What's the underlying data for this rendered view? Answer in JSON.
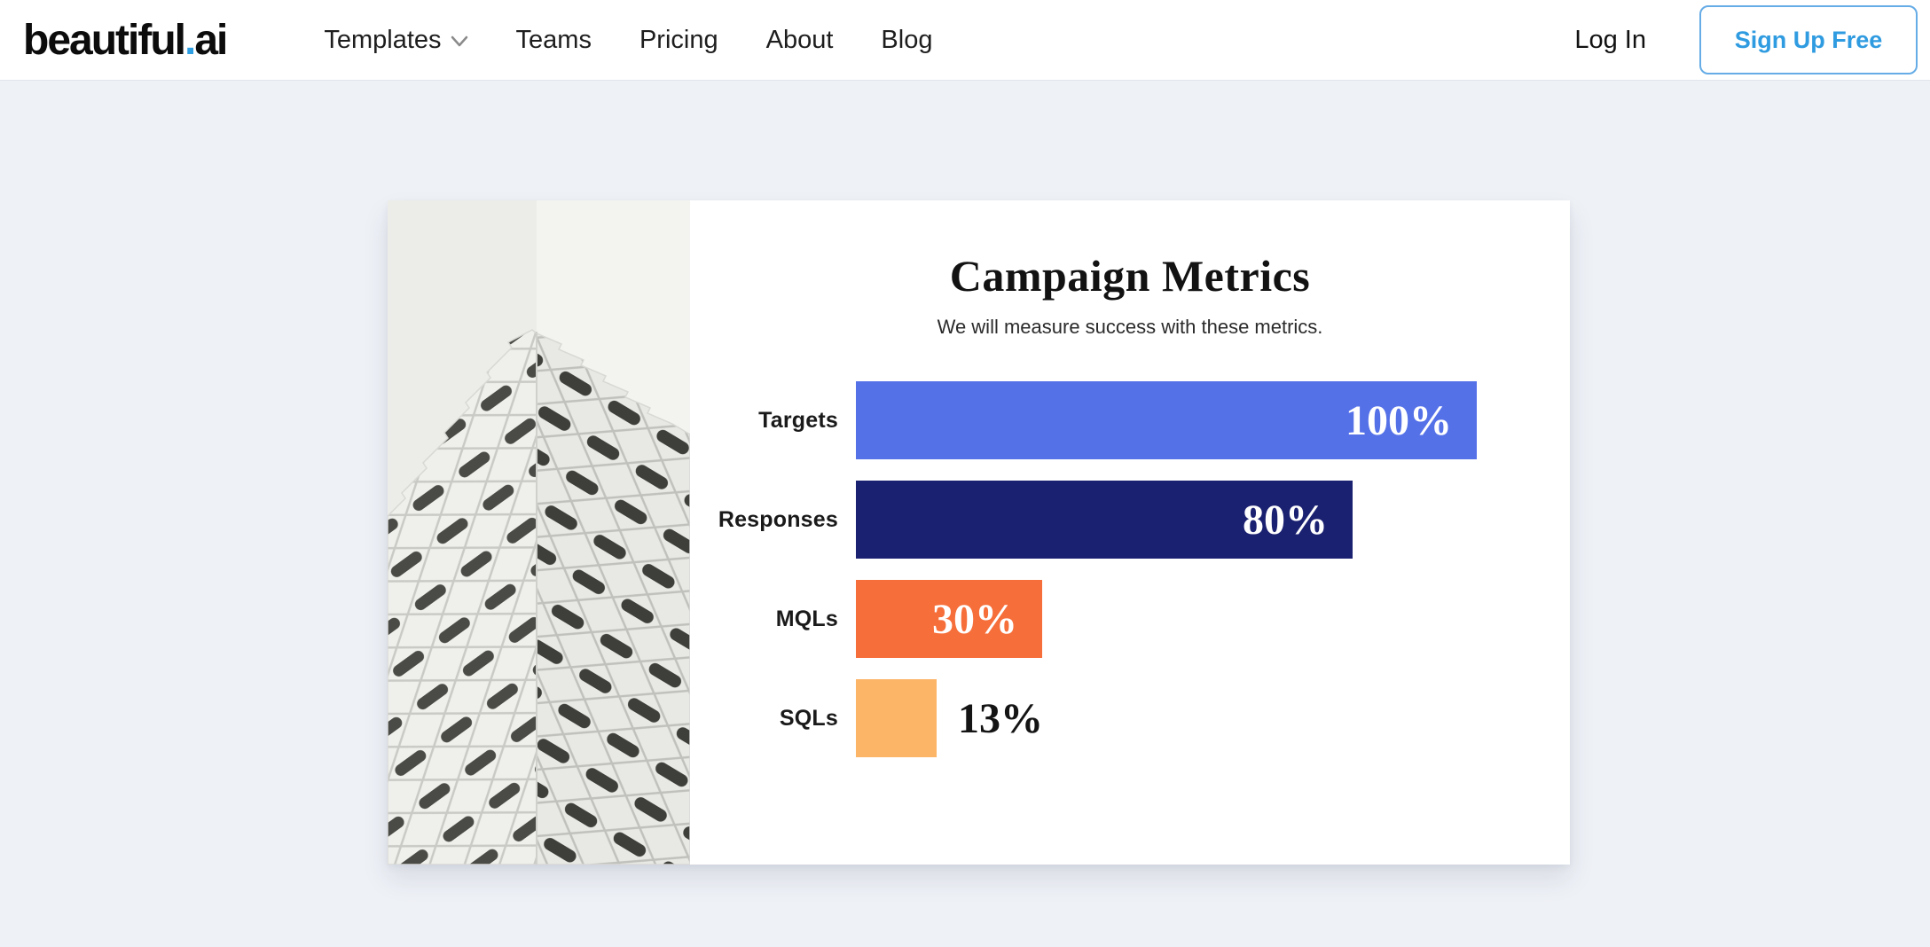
{
  "header": {
    "logo": {
      "prefix": "beautiful",
      "dot": ".",
      "suffix": "ai"
    },
    "nav": [
      {
        "label": "Templates",
        "has_dropdown": true
      },
      {
        "label": "Teams",
        "has_dropdown": false
      },
      {
        "label": "Pricing",
        "has_dropdown": false
      },
      {
        "label": "About",
        "has_dropdown": false
      },
      {
        "label": "Blog",
        "has_dropdown": false
      }
    ],
    "login_label": "Log In",
    "signup_label": "Sign Up Free"
  },
  "chart_data": {
    "type": "bar",
    "orientation": "horizontal",
    "title": "Campaign Metrics",
    "subtitle": "We will measure success with these metrics.",
    "categories": [
      "Targets",
      "Responses",
      "MQLs",
      "SQLs"
    ],
    "values": [
      100,
      80,
      30,
      13
    ],
    "value_labels": [
      "100%",
      "80%",
      "30%",
      "13%"
    ],
    "bar_colors": [
      "#5571E8",
      "#1B2171",
      "#F66E3A",
      "#FCB566"
    ],
    "xlim": [
      0,
      100
    ],
    "grid": false,
    "legend": "none",
    "value_label_style": "inside bar end in white serif; outside bar in dark when bar too short"
  },
  "colors": {
    "page_background": "#EEF1F6",
    "header_background": "#FFFFFF",
    "brand_blue": "#2E9FE3",
    "signup_border": "#66ACE6",
    "card_background": "#FFFFFF"
  }
}
